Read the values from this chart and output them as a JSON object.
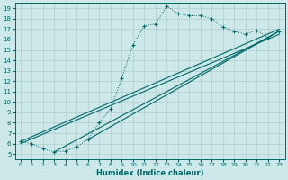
{
  "bg_color": "#cce8e8",
  "grid_color": "#b0cccc",
  "line_color": "#006868",
  "xlabel": "Humidex (Indice chaleur)",
  "xlim": [
    -0.5,
    23.5
  ],
  "ylim": [
    4.5,
    19.5
  ],
  "xticks": [
    0,
    1,
    2,
    3,
    4,
    5,
    6,
    7,
    8,
    9,
    10,
    11,
    12,
    13,
    14,
    15,
    16,
    17,
    18,
    19,
    20,
    21,
    22,
    23
  ],
  "yticks": [
    5,
    6,
    7,
    8,
    9,
    10,
    11,
    12,
    13,
    14,
    15,
    16,
    17,
    18,
    19
  ],
  "main_curve_x": [
    0,
    1,
    2,
    3,
    4,
    5,
    6,
    7,
    8,
    9,
    10,
    11,
    12,
    13,
    14,
    15,
    16,
    17,
    18,
    19,
    20,
    21,
    22,
    23
  ],
  "main_curve_y": [
    6.2,
    6.0,
    5.5,
    5.2,
    5.3,
    5.7,
    6.4,
    8.0,
    9.3,
    12.3,
    15.5,
    17.3,
    17.5,
    19.2,
    18.5,
    18.3,
    18.3,
    18.0,
    17.2,
    16.8,
    16.5,
    16.9,
    16.2,
    16.8
  ],
  "diag_lines": [
    {
      "x": [
        0,
        23
      ],
      "y": [
        6.2,
        17.0
      ]
    },
    {
      "x": [
        0,
        23
      ],
      "y": [
        6.0,
        16.5
      ]
    },
    {
      "x": [
        3,
        23
      ],
      "y": [
        5.2,
        16.8
      ]
    },
    {
      "x": [
        6,
        23
      ],
      "y": [
        6.4,
        16.8
      ]
    }
  ]
}
